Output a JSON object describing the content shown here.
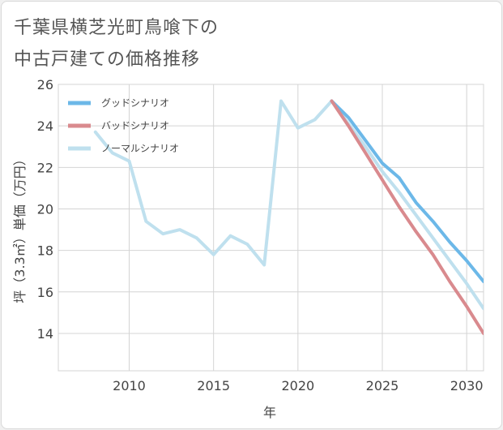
{
  "title_line1": "千葉県横芝光町鳥喰下の",
  "title_line2": "中古戸建ての価格推移",
  "chart_data": {
    "type": "line",
    "xlabel": "年",
    "ylabel": "坪（3.3㎡）単価（万円）",
    "xlim": [
      2005.8,
      2031
    ],
    "ylim": [
      12.2,
      26
    ],
    "x_ticks": [
      2010,
      2015,
      2020,
      2025,
      2030
    ],
    "y_ticks": [
      14,
      16,
      18,
      20,
      22,
      24,
      26
    ],
    "grid": true,
    "legend_position": "top-left",
    "series": [
      {
        "name": "グッドシナリオ",
        "color": "#6cb8e8",
        "x": [
          2022,
          2023,
          2024,
          2025,
          2026,
          2027,
          2028,
          2029,
          2030,
          2031
        ],
        "values": [
          25.2,
          24.4,
          23.3,
          22.2,
          21.5,
          20.3,
          19.4,
          18.4,
          17.5,
          16.5
        ]
      },
      {
        "name": "バッドシナリオ",
        "color": "#d98a8e",
        "x": [
          2022,
          2023,
          2024,
          2025,
          2026,
          2027,
          2028,
          2029,
          2030,
          2031
        ],
        "values": [
          25.2,
          24.0,
          22.7,
          21.4,
          20.1,
          18.9,
          17.8,
          16.5,
          15.3,
          14.0
        ]
      },
      {
        "name": "ノーマルシナリオ",
        "color": "#bfe0ee",
        "x": [
          2008,
          2009,
          2010,
          2011,
          2012,
          2013,
          2014,
          2015,
          2016,
          2017,
          2018,
          2019,
          2020,
          2021,
          2022,
          2023,
          2024,
          2025,
          2026,
          2027,
          2028,
          2029,
          2030,
          2031
        ],
        "values": [
          23.7,
          22.7,
          22.3,
          19.4,
          18.8,
          19.0,
          18.6,
          17.8,
          18.7,
          18.3,
          17.3,
          25.2,
          23.9,
          24.3,
          25.2,
          24.1,
          23.0,
          21.8,
          20.8,
          19.7,
          18.6,
          17.5,
          16.4,
          15.2
        ]
      }
    ]
  }
}
